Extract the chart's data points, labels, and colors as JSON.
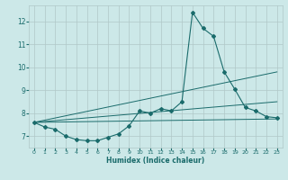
{
  "title": "",
  "xlabel": "Humidex (Indice chaleur)",
  "ylabel": "",
  "xlim": [
    -0.5,
    23.5
  ],
  "ylim": [
    6.5,
    12.7
  ],
  "yticks": [
    7,
    8,
    9,
    10,
    11,
    12
  ],
  "xticks": [
    0,
    1,
    2,
    3,
    4,
    5,
    6,
    7,
    8,
    9,
    10,
    11,
    12,
    13,
    14,
    15,
    16,
    17,
    18,
    19,
    20,
    21,
    22,
    23
  ],
  "bg_color": "#cce8e8",
  "line_color": "#1a6b6b",
  "grid_color": "#b0c8c8",
  "series1_x": [
    0,
    1,
    2,
    3,
    4,
    5,
    6,
    7,
    8,
    9,
    10,
    11,
    12,
    13,
    14,
    15,
    16,
    17,
    18,
    19,
    20,
    21,
    22,
    23
  ],
  "series1_y": [
    7.6,
    7.4,
    7.3,
    7.0,
    6.85,
    6.8,
    6.8,
    6.95,
    7.1,
    7.45,
    8.1,
    8.0,
    8.2,
    8.1,
    8.5,
    12.4,
    11.7,
    11.35,
    9.8,
    9.05,
    8.25,
    8.1,
    7.85,
    7.8
  ],
  "series2_x": [
    0,
    23
  ],
  "series2_y": [
    7.6,
    7.75
  ],
  "series3_x": [
    0,
    23
  ],
  "series3_y": [
    7.6,
    9.8
  ],
  "series4_x": [
    0,
    23
  ],
  "series4_y": [
    7.6,
    8.5
  ]
}
